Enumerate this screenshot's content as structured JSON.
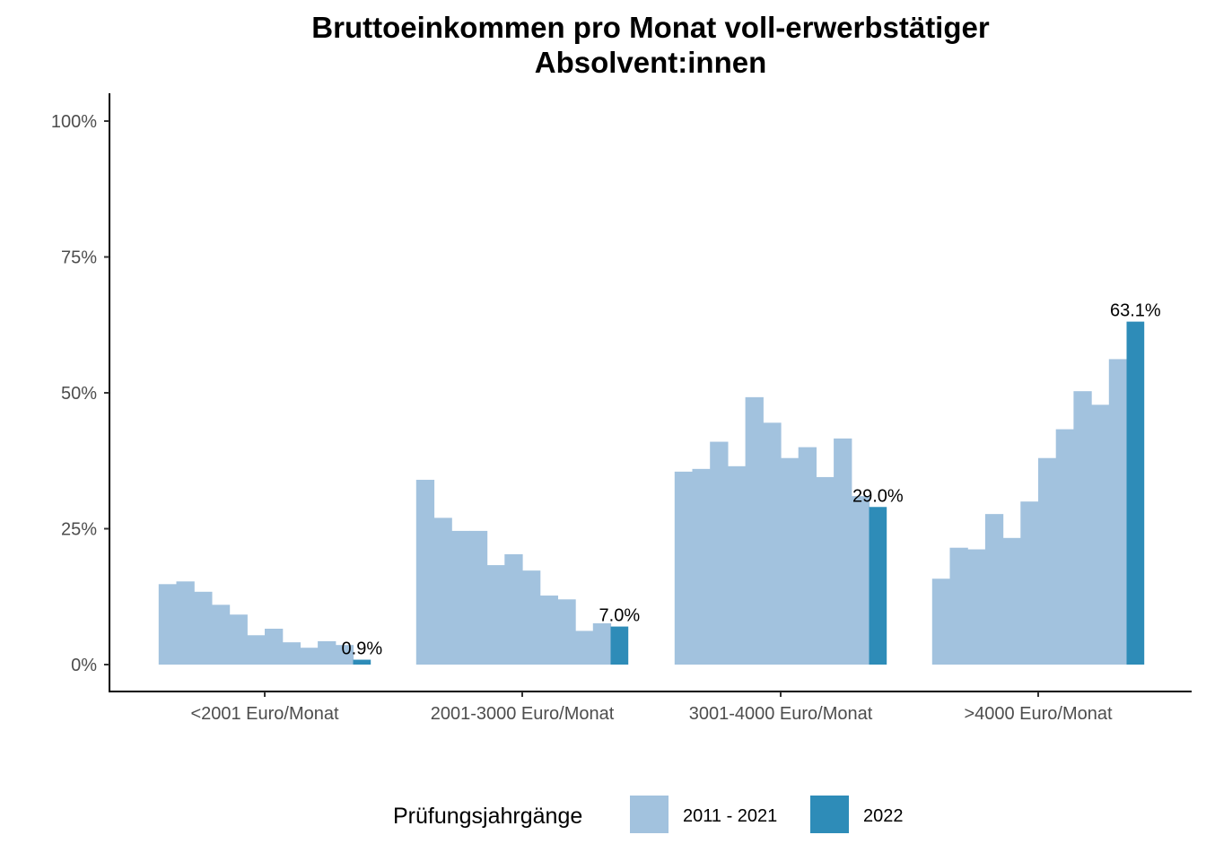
{
  "chart_data": {
    "type": "bar",
    "title_lines": [
      "Bruttoeinkommen pro Monat voll-erwerbstätiger",
      "Absolvent:innen"
    ],
    "xlabel": "",
    "ylabel": "",
    "ylim": [
      0,
      100
    ],
    "y_ticks": [
      0,
      25,
      50,
      75,
      100
    ],
    "y_tick_labels": [
      "0%",
      "25%",
      "50%",
      "75%",
      "100%"
    ],
    "grid": false,
    "legend": {
      "title": "Prüfungsjahrgänge",
      "placement": "bottom",
      "entries": [
        {
          "label": "2011 - 2021",
          "color": "#a2c2de"
        },
        {
          "label": "2022",
          "color": "#2e8cb8"
        }
      ]
    },
    "categories": [
      "<2001 Euro/Monat",
      "2001-3000 Euro/Monat",
      "3001-4000 Euro/Monat",
      ">4000 Euro/Monat"
    ],
    "series": [
      {
        "name": "2011 - 2021",
        "color": "#a2c2de",
        "years_per_category": 11,
        "values": [
          [
            14.8,
            15.3,
            13.4,
            11.0,
            9.2,
            5.4,
            6.6,
            4.1,
            3.1,
            4.3,
            3.6
          ],
          [
            34.0,
            27.0,
            24.6,
            24.6,
            18.3,
            20.3,
            17.3,
            12.7,
            12.0,
            6.2,
            7.6
          ],
          [
            35.5,
            36.0,
            41.0,
            36.5,
            49.2,
            44.5,
            38.0,
            40.0,
            34.5,
            41.6,
            31.0
          ],
          [
            15.8,
            21.5,
            21.2,
            27.7,
            23.3,
            30.0,
            38.0,
            43.3,
            50.3,
            47.8,
            56.2
          ]
        ]
      },
      {
        "name": "2022",
        "color": "#2e8cb8",
        "values": [
          0.9,
          7.0,
          29.0,
          63.1
        ],
        "labels": [
          "0.9%",
          "7.0%",
          "29.0%",
          "63.1%"
        ]
      }
    ]
  }
}
